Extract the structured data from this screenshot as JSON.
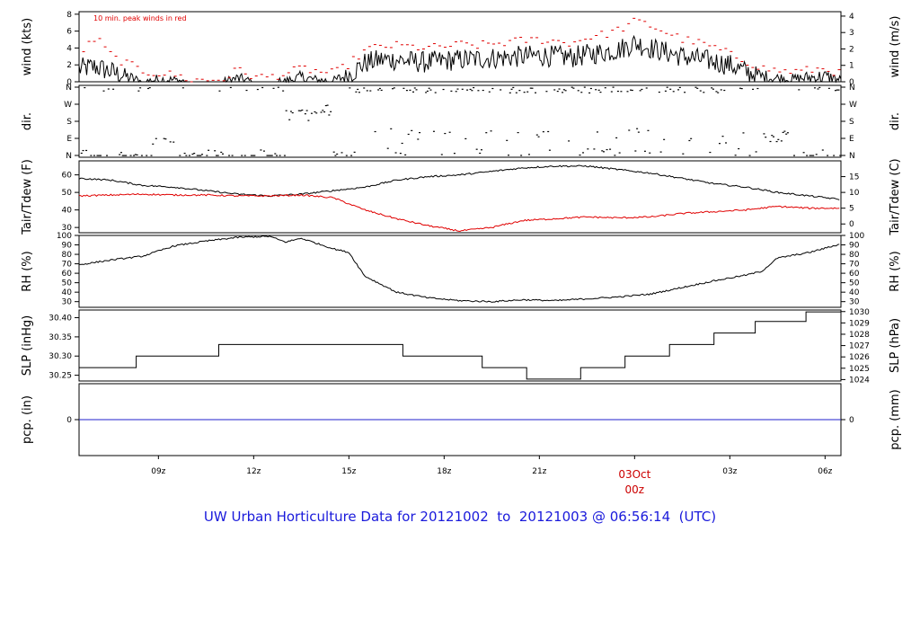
{
  "caption": "UW Urban Horticulture Data for 20121002  to  20121003 @ 06:56:14  (UTC)",
  "colors": {
    "axis": "#000000",
    "peak": "#e00000",
    "dewpoint": "#e00000",
    "precip": "#2222cc",
    "caption": "#1a1adb",
    "date_label": "#cc0000"
  },
  "chart_data": [
    {
      "type": "line",
      "panel": "wind",
      "ylabel_left": "wind (kts)",
      "ylabel_right": "wind (m/s)",
      "annotation": "10 min. peak winds in red",
      "left_ticks": [
        "0",
        "2",
        "4",
        "6",
        "8"
      ],
      "right_ticks": [
        "0",
        "1",
        "2",
        "3",
        "4"
      ],
      "ylim": [
        0,
        8.3
      ],
      "time_range_hours": [
        6.5,
        30.5
      ],
      "series": [
        {
          "values_shape": "wind speed (kts)",
          "x": [
            6.5,
            7,
            7.5,
            8,
            8.5,
            9,
            9.5,
            10,
            10.5,
            11,
            11.5,
            12,
            12.5,
            13,
            13.5,
            14,
            14.5,
            15,
            15.5,
            16,
            16.5,
            17,
            17.5,
            18,
            18.5,
            19,
            19.5,
            20,
            20.5,
            21,
            21.5,
            22,
            22.5,
            23,
            23.5,
            24,
            24.5,
            25,
            25.5,
            26,
            26.5,
            27,
            27.5,
            28,
            28.5,
            29,
            29.5,
            30,
            30.5
          ],
          "y": [
            1.5,
            1.8,
            1.2,
            0.6,
            0.0,
            0.3,
            0.2,
            0.0,
            0.0,
            0.0,
            0.4,
            0.0,
            0.0,
            0.1,
            0.5,
            0.2,
            0.1,
            0.8,
            2.2,
            2.6,
            2.6,
            2.4,
            2.3,
            2.5,
            2.6,
            2.7,
            2.8,
            2.9,
            3.0,
            3.1,
            3.0,
            2.9,
            3.2,
            3.5,
            3.8,
            4.6,
            4.0,
            3.5,
            3.0,
            2.7,
            2.4,
            2.0,
            1.2,
            0.6,
            0.4,
            0.3,
            0.5,
            0.6,
            0.2
          ]
        },
        {
          "values_shape": "10 min. peak winds (kts)",
          "x": [
            6.5,
            7,
            7.5,
            8,
            8.5,
            9,
            9.5,
            10,
            10.5,
            11,
            11.5,
            12,
            12.5,
            13,
            13.5,
            14,
            14.5,
            15,
            15.5,
            16,
            16.5,
            17,
            17.5,
            18,
            18.5,
            19,
            19.5,
            20,
            20.5,
            21,
            21.5,
            22,
            22.5,
            23,
            23.5,
            24,
            24.5,
            25,
            25.5,
            26,
            26.5,
            27,
            27.5,
            28,
            28.5,
            29,
            29.5,
            30,
            30.5
          ],
          "y": [
            3.5,
            5.2,
            3.0,
            2.1,
            1.2,
            1.0,
            0.8,
            0.2,
            0.2,
            0.3,
            1.5,
            0.5,
            0.6,
            1.0,
            1.6,
            1.2,
            1.0,
            2.2,
            3.8,
            4.2,
            4.3,
            4.1,
            4.0,
            4.2,
            4.4,
            4.3,
            4.5,
            4.7,
            4.9,
            5.0,
            4.8,
            4.6,
            5.3,
            5.6,
            6.2,
            7.2,
            6.6,
            5.8,
            5.0,
            4.6,
            4.0,
            3.2,
            2.4,
            1.6,
            1.3,
            1.2,
            1.4,
            1.6,
            0.8
          ]
        }
      ]
    },
    {
      "type": "scatter",
      "panel": "direction",
      "ylabel_left": "dir.",
      "ylabel_right": "dir.",
      "left_ticks": [
        "N",
        "E",
        "S",
        "W",
        "N"
      ],
      "right_ticks": [
        "N",
        "E",
        "S",
        "W",
        "N"
      ],
      "ylim": [
        0,
        360
      ],
      "time_range_hours": [
        6.5,
        30.5
      ]
    },
    {
      "type": "line",
      "panel": "temperature",
      "ylabel_left": "Tair/Tdew (F)",
      "ylabel_right": "Tair/Tdew (C)",
      "left_ticks": [
        "30",
        "40",
        "50",
        "60"
      ],
      "right_ticks": [
        "0",
        "5",
        "10",
        "15"
      ],
      "ylim": [
        27,
        68
      ],
      "time_range_hours": [
        6.5,
        30.5
      ],
      "series": [
        {
          "values_shape": "air temperature (F)",
          "x": [
            6.5,
            7.5,
            8.5,
            9.5,
            10.5,
            11.5,
            12.5,
            13.5,
            14.5,
            15.5,
            16.5,
            17.5,
            18.5,
            19.5,
            20.5,
            21.5,
            22.5,
            23.5,
            24.5,
            25.5,
            26.5,
            27.5,
            28.5,
            29.5,
            30.5
          ],
          "y": [
            58,
            57,
            54,
            53,
            51,
            49,
            48,
            49,
            51,
            53,
            57,
            59,
            60,
            62,
            64,
            65,
            65,
            63,
            61,
            58,
            55,
            53,
            50,
            48,
            46
          ]
        },
        {
          "values_shape": "dew point (F)",
          "x": [
            6.5,
            7.5,
            8.5,
            9.5,
            10.5,
            11.5,
            12.5,
            13.5,
            14.5,
            15.5,
            16.5,
            17.5,
            18.5,
            19.5,
            20.5,
            21.5,
            22.5,
            23.5,
            24.5,
            25.5,
            26.5,
            27.5,
            28.5,
            29.5,
            30.5
          ],
          "y": [
            48,
            48.5,
            49,
            48.5,
            48.5,
            48,
            48,
            48.5,
            47,
            40,
            35,
            31,
            28,
            30,
            34,
            35,
            36,
            35.5,
            36,
            38,
            39,
            40,
            42,
            41,
            41
          ]
        }
      ]
    },
    {
      "type": "line",
      "panel": "humidity",
      "ylabel_left": "RH (%)",
      "ylabel_right": "RH (%)",
      "left_ticks": [
        "30",
        "40",
        "50",
        "60",
        "70",
        "80",
        "90",
        "100"
      ],
      "right_ticks": [
        "30",
        "40",
        "50",
        "60",
        "70",
        "80",
        "90",
        "100"
      ],
      "ylim": [
        24,
        100
      ],
      "time_range_hours": [
        6.5,
        30.5
      ],
      "series": [
        {
          "values_shape": "relative humidity (%)",
          "x": [
            6.5,
            7.5,
            8.5,
            9.5,
            10.5,
            11.5,
            12.5,
            13,
            13.5,
            14.5,
            15,
            15.5,
            16.5,
            17.5,
            18.5,
            19.5,
            20.5,
            21.5,
            22.5,
            23.5,
            24.5,
            25.5,
            26.5,
            27.5,
            28,
            28.5,
            29.5,
            30.5
          ],
          "y": [
            69,
            74,
            78,
            89,
            94,
            98,
            99,
            93,
            97,
            86,
            82,
            57,
            40,
            34,
            31,
            30,
            32,
            31,
            33,
            35,
            38,
            45,
            52,
            58,
            62,
            76,
            82,
            91
          ]
        }
      ]
    },
    {
      "type": "line",
      "panel": "pressure",
      "ylabel_left": "SLP (inHg)",
      "ylabel_right": "SLP (hPa)",
      "left_ticks": [
        "30.25",
        "30.30",
        "30.35",
        "30.40"
      ],
      "right_ticks": [
        "1024",
        "1025",
        "1026",
        "1027",
        "1028",
        "1029",
        "1030"
      ],
      "ylim": [
        30.235,
        30.42
      ],
      "time_range_hours": [
        6.5,
        30.5
      ],
      "series": [
        {
          "values_shape": "sea level pressure (inHg) step",
          "x": [
            6.5,
            8.3,
            8.3,
            10.9,
            10.9,
            16.7,
            16.7,
            19.2,
            19.2,
            20.6,
            20.6,
            22.3,
            22.3,
            23.7,
            23.7,
            25.1,
            25.1,
            26.5,
            26.5,
            27.8,
            27.8,
            29.4,
            29.4,
            30.5
          ],
          "y": [
            30.27,
            30.27,
            30.3,
            30.3,
            30.33,
            30.33,
            30.3,
            30.3,
            30.27,
            30.27,
            30.24,
            30.24,
            30.27,
            30.27,
            30.3,
            30.3,
            30.33,
            30.33,
            30.36,
            30.36,
            30.39,
            30.39,
            30.415,
            30.415
          ]
        }
      ]
    },
    {
      "type": "line",
      "panel": "precipitation",
      "ylabel_left": "pcp. (in)",
      "ylabel_right": "pcp. (mm)",
      "left_ticks": [
        "0"
      ],
      "right_ticks": [
        "0"
      ],
      "ylim": [
        -1,
        1
      ],
      "time_range_hours": [
        6.5,
        30.5
      ],
      "series": [
        {
          "values_shape": "precipitation (in)",
          "x": [
            6.5,
            30.5
          ],
          "y": [
            0,
            0
          ]
        }
      ]
    }
  ],
  "x_axis": {
    "tick_labels": [
      "09z",
      "12z",
      "15z",
      "18z",
      "21z",
      "03Oct",
      "03z",
      "06z"
    ],
    "tick_hours": [
      9,
      12,
      15,
      18,
      21,
      24,
      27,
      30
    ],
    "date_label_line2": "00z"
  }
}
